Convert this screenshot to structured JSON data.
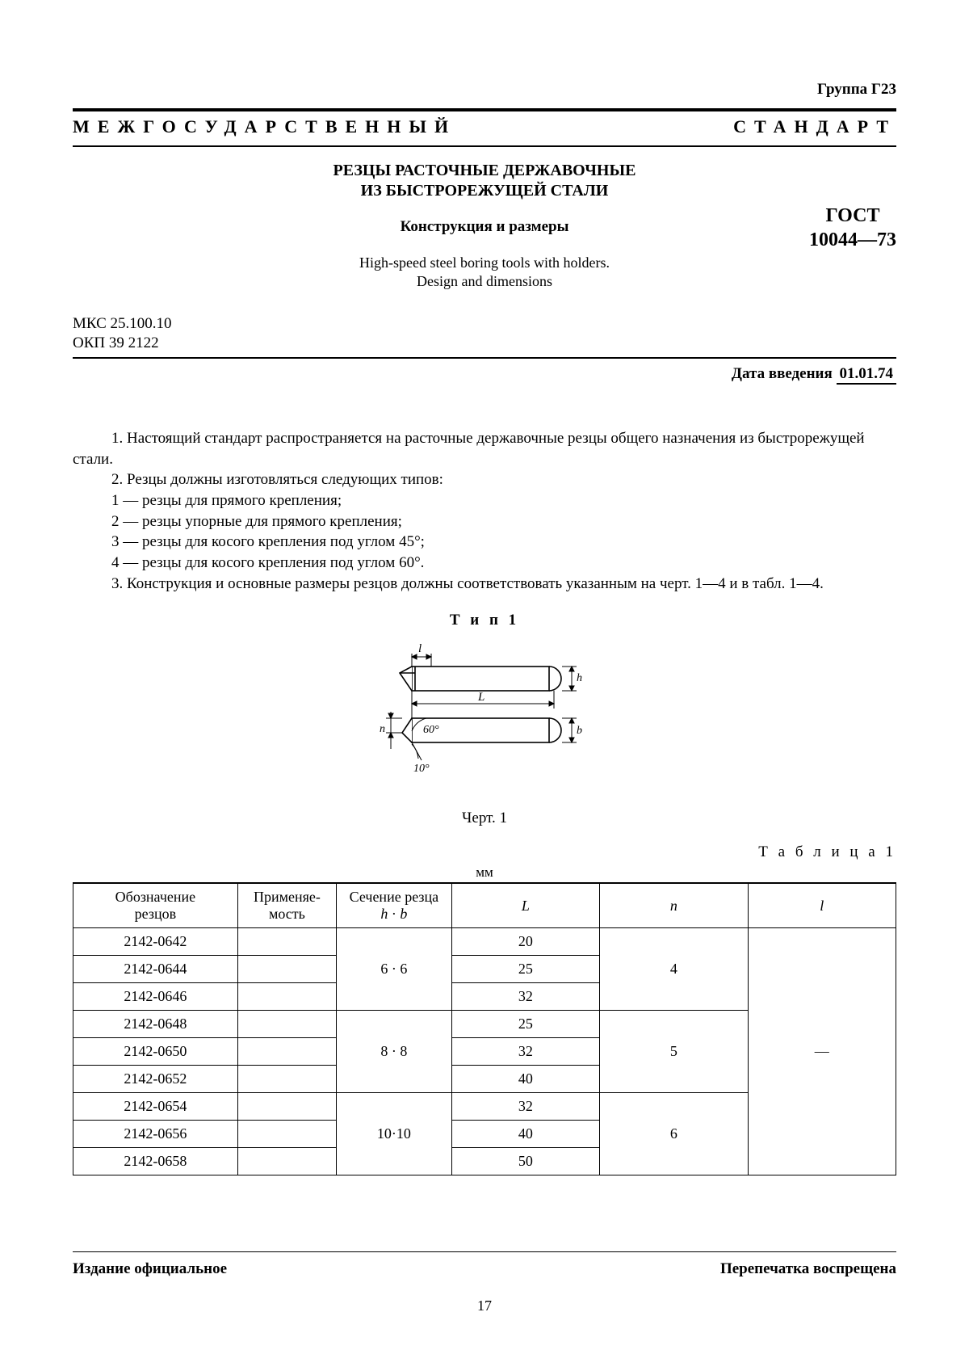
{
  "group_label": "Группа Г23",
  "banner_left": "МЕЖГОСУДАРСТВЕННЫЙ",
  "banner_right": "СТАНДАРТ",
  "title_ru_line1": "РЕЗЦЫ РАСТОЧНЫЕ ДЕРЖАВОЧНЫЕ",
  "title_ru_line2": "ИЗ БЫСТРОРЕЖУЩЕЙ СТАЛИ",
  "subtitle_ru": "Конструкция и размеры",
  "title_en_line1": "High-speed steel boring tools with holders.",
  "title_en_line2": "Design and dimensions",
  "gost_label": "ГОСТ",
  "gost_number": "10044—73",
  "code_mkc": "МКС 25.100.10",
  "code_okp": "ОКП 39 2122",
  "intro_date_label": "Дата введения",
  "intro_date_value": "01.01.74",
  "paragraphs": [
    "1. Настоящий стандарт распространяется на расточные державочные резцы общего назначения из быстрорежущей стали.",
    "2. Резцы должны изготовляться следующих типов:",
    "1 — резцы для прямого крепления;",
    "2 — резцы упорные для прямого крепления;",
    "3 — резцы для косого крепления под углом 45°;",
    "4 — резцы для косого крепления под углом 60°.",
    "3. Конструкция и основные размеры резцов должны соответствовать указанным на черт. 1—4 и в табл. 1—4."
  ],
  "figure": {
    "title": "Т и п   1",
    "caption": "Черт. 1",
    "labels": {
      "l_small": "l",
      "L_big": "L",
      "n": "n",
      "h": "h",
      "b": "b",
      "angle60": "60°",
      "angle10": "10°"
    },
    "stroke": "#000000",
    "fill": "#ffffff"
  },
  "table": {
    "label": "Т а б л и ц а  1",
    "unit": "мм",
    "columns": [
      {
        "main": "Обозначение",
        "sub": "резцов",
        "width": "20%"
      },
      {
        "main": "Применяе-",
        "sub": "мость",
        "width": "12%"
      },
      {
        "main": "Сечение резца",
        "sub_html": "h · b",
        "width": "14%"
      },
      {
        "main": "L",
        "italic": true,
        "width": "18%"
      },
      {
        "main": "n",
        "italic": true,
        "width": "18%"
      },
      {
        "main": "l",
        "italic": true,
        "width": "18%"
      }
    ],
    "groups": [
      {
        "section": "6 · 6",
        "n": "4",
        "rows": [
          {
            "code": "2142-0642",
            "apply": "",
            "L": "20"
          },
          {
            "code": "2142-0644",
            "apply": "",
            "L": "25"
          },
          {
            "code": "2142-0646",
            "apply": "",
            "L": "32"
          }
        ]
      },
      {
        "section": "8 · 8",
        "n": "5",
        "rows": [
          {
            "code": "2142-0648",
            "apply": "",
            "L": "25"
          },
          {
            "code": "2142-0650",
            "apply": "",
            "L": "32"
          },
          {
            "code": "2142-0652",
            "apply": "",
            "L": "40"
          }
        ]
      },
      {
        "section": "10·10",
        "n": "6",
        "rows": [
          {
            "code": "2142-0654",
            "apply": "",
            "L": "32"
          },
          {
            "code": "2142-0656",
            "apply": "",
            "L": "40"
          },
          {
            "code": "2142-0658",
            "apply": "",
            "L": "50"
          }
        ]
      }
    ],
    "l_span_value": "—"
  },
  "footer_left": "Издание официальное",
  "footer_right": "Перепечатка воспрещена",
  "page_number": "17"
}
